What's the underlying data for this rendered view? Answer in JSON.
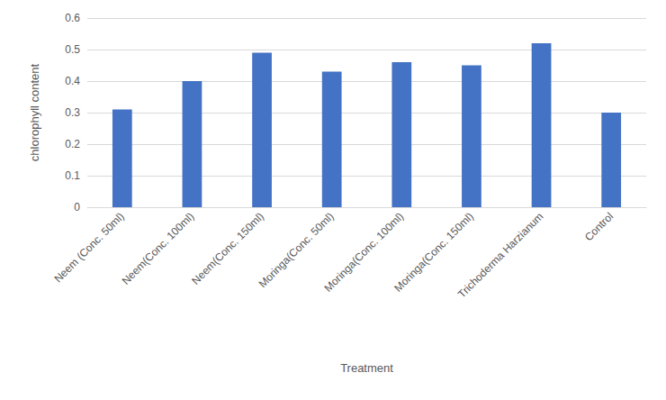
{
  "chart_data": {
    "type": "bar",
    "x_label": "Treatment",
    "y_label": "chlorophyll content",
    "categories": [
      "Neem (Conc. 50ml)",
      "Neem(Conc. 100ml)",
      "Neem(Conc. 150ml)",
      "Moringa(Conc. 50ml)",
      "Moringa(Conc. 100ml)",
      "Moringa(Conc. 150ml)",
      "Trichoderma Harzianum",
      "Control"
    ],
    "values": [
      0.31,
      0.4,
      0.49,
      0.43,
      0.46,
      0.45,
      0.52,
      0.3
    ],
    "color": "#4472c4",
    "ylim": [
      0,
      0.6
    ],
    "yticks": [
      0,
      0.1,
      0.2,
      0.3,
      0.4,
      0.5,
      0.6
    ],
    "grid": true
  }
}
